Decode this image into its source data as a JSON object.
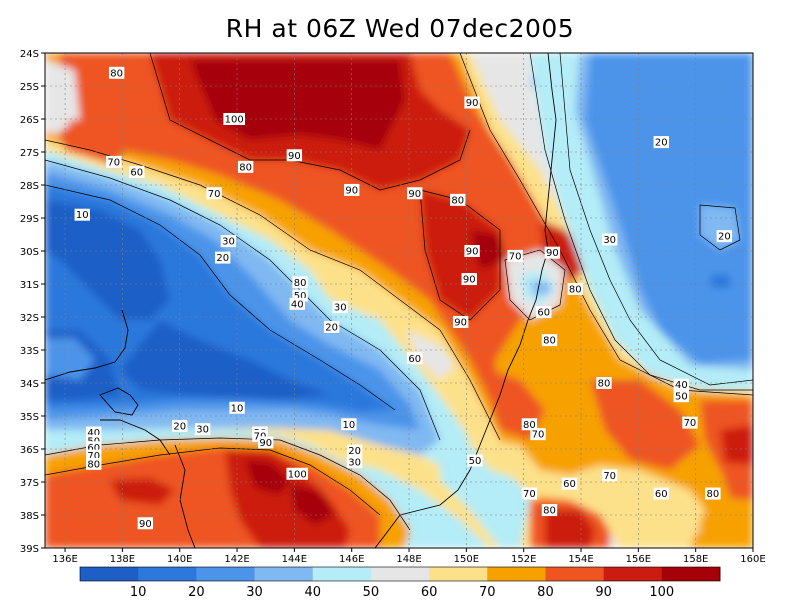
{
  "title": "RH at 06Z Wed 07dec2005",
  "colors": {
    "bins": [
      "#1e5fc7",
      "#2c78dc",
      "#4b94ea",
      "#80b8f2",
      "#b4ecf7",
      "#e6e6e6",
      "#fde18a",
      "#f7a100",
      "#ee5520",
      "#cc1b10",
      "#a60008"
    ],
    "contour": "#000000",
    "grid": "#808080",
    "coast": "#000000"
  },
  "chart_data": {
    "type": "heatmap",
    "title": "RH at 06Z Wed 07dec2005",
    "variable": "RH",
    "x_ticks": [
      "136E",
      "138E",
      "140E",
      "142E",
      "144E",
      "146E",
      "148E",
      "150E",
      "152E",
      "154E",
      "156E",
      "158E",
      "160E"
    ],
    "y_ticks": [
      "24S",
      "25S",
      "26S",
      "27S",
      "28S",
      "29S",
      "30S",
      "31S",
      "32S",
      "33S",
      "34S",
      "35S",
      "36S",
      "37S",
      "38S",
      "39S"
    ],
    "xlim": [
      135.3,
      160
    ],
    "ylim": [
      -39,
      -24
    ],
    "colorbar": {
      "levels": [
        10,
        20,
        30,
        40,
        50,
        60,
        70,
        80,
        90,
        100
      ],
      "labels": [
        "10",
        "20",
        "30",
        "40",
        "50",
        "60",
        "70",
        "80",
        "90",
        "100"
      ]
    },
    "grid": true,
    "contour_labels": [
      {
        "lon": 137.8,
        "lat": -24.6,
        "text": "80"
      },
      {
        "lon": 141.9,
        "lat": -26.0,
        "text": "100"
      },
      {
        "lon": 150.2,
        "lat": -25.5,
        "text": "90"
      },
      {
        "lon": 137.7,
        "lat": -27.3,
        "text": "70"
      },
      {
        "lon": 138.5,
        "lat": -27.6,
        "text": "60"
      },
      {
        "lon": 142.3,
        "lat": -27.45,
        "text": "80"
      },
      {
        "lon": 144.0,
        "lat": -27.1,
        "text": "90"
      },
      {
        "lon": 146.0,
        "lat": -28.15,
        "text": "90"
      },
      {
        "lon": 148.2,
        "lat": -28.25,
        "text": "90"
      },
      {
        "lon": 149.7,
        "lat": -28.45,
        "text": "80"
      },
      {
        "lon": 141.2,
        "lat": -28.25,
        "text": "70"
      },
      {
        "lon": 156.8,
        "lat": -26.7,
        "text": "20"
      },
      {
        "lon": 136.6,
        "lat": -28.9,
        "text": "10"
      },
      {
        "lon": 141.7,
        "lat": -29.7,
        "text": "30"
      },
      {
        "lon": 141.5,
        "lat": -30.2,
        "text": "20"
      },
      {
        "lon": 150.2,
        "lat": -30.0,
        "text": "90"
      },
      {
        "lon": 151.7,
        "lat": -30.15,
        "text": "70"
      },
      {
        "lon": 153.0,
        "lat": -30.05,
        "text": "90"
      },
      {
        "lon": 155.0,
        "lat": -29.65,
        "text": "30"
      },
      {
        "lon": 159.0,
        "lat": -29.55,
        "text": "20"
      },
      {
        "lon": 150.1,
        "lat": -30.85,
        "text": "90"
      },
      {
        "lon": 144.2,
        "lat": -30.95,
        "text": "80"
      },
      {
        "lon": 144.2,
        "lat": -31.35,
        "text": "50"
      },
      {
        "lon": 144.1,
        "lat": -31.6,
        "text": "40"
      },
      {
        "lon": 145.6,
        "lat": -31.7,
        "text": "30"
      },
      {
        "lon": 153.8,
        "lat": -31.15,
        "text": "80"
      },
      {
        "lon": 152.7,
        "lat": -31.85,
        "text": "60"
      },
      {
        "lon": 145.3,
        "lat": -32.3,
        "text": "20"
      },
      {
        "lon": 149.8,
        "lat": -32.15,
        "text": "90"
      },
      {
        "lon": 152.9,
        "lat": -32.7,
        "text": "80"
      },
      {
        "lon": 148.2,
        "lat": -33.25,
        "text": "60"
      },
      {
        "lon": 154.8,
        "lat": -34.0,
        "text": "80"
      },
      {
        "lon": 157.5,
        "lat": -34.05,
        "text": "40"
      },
      {
        "lon": 157.5,
        "lat": -34.4,
        "text": "50"
      },
      {
        "lon": 142.0,
        "lat": -34.75,
        "text": "10"
      },
      {
        "lon": 145.9,
        "lat": -35.25,
        "text": "10"
      },
      {
        "lon": 140.0,
        "lat": -35.3,
        "text": "20"
      },
      {
        "lon": 140.8,
        "lat": -35.4,
        "text": "30"
      },
      {
        "lon": 157.8,
        "lat": -35.2,
        "text": "70"
      },
      {
        "lon": 152.2,
        "lat": -35.25,
        "text": "80"
      },
      {
        "lon": 152.5,
        "lat": -35.55,
        "text": "70"
      },
      {
        "lon": 137.0,
        "lat": -35.5,
        "text": "40"
      },
      {
        "lon": 137.0,
        "lat": -35.75,
        "text": "50"
      },
      {
        "lon": 137.0,
        "lat": -35.95,
        "text": "60"
      },
      {
        "lon": 137.0,
        "lat": -36.2,
        "text": "70"
      },
      {
        "lon": 137.0,
        "lat": -36.45,
        "text": "80"
      },
      {
        "lon": 142.8,
        "lat": -35.5,
        "text": "50"
      },
      {
        "lon": 142.8,
        "lat": -35.6,
        "text": "70"
      },
      {
        "lon": 143.0,
        "lat": -35.8,
        "text": "90"
      },
      {
        "lon": 146.1,
        "lat": -36.05,
        "text": "20"
      },
      {
        "lon": 146.1,
        "lat": -36.4,
        "text": "30"
      },
      {
        "lon": 150.3,
        "lat": -36.35,
        "text": "50"
      },
      {
        "lon": 144.1,
        "lat": -36.75,
        "text": "100"
      },
      {
        "lon": 155.0,
        "lat": -36.8,
        "text": "70"
      },
      {
        "lon": 153.6,
        "lat": -37.05,
        "text": "60"
      },
      {
        "lon": 152.2,
        "lat": -37.35,
        "text": "70"
      },
      {
        "lon": 156.8,
        "lat": -37.35,
        "text": "60"
      },
      {
        "lon": 158.6,
        "lat": -37.35,
        "text": "80"
      },
      {
        "lon": 152.9,
        "lat": -37.85,
        "text": "80"
      },
      {
        "lon": 138.8,
        "lat": -38.25,
        "text": "90"
      }
    ]
  }
}
